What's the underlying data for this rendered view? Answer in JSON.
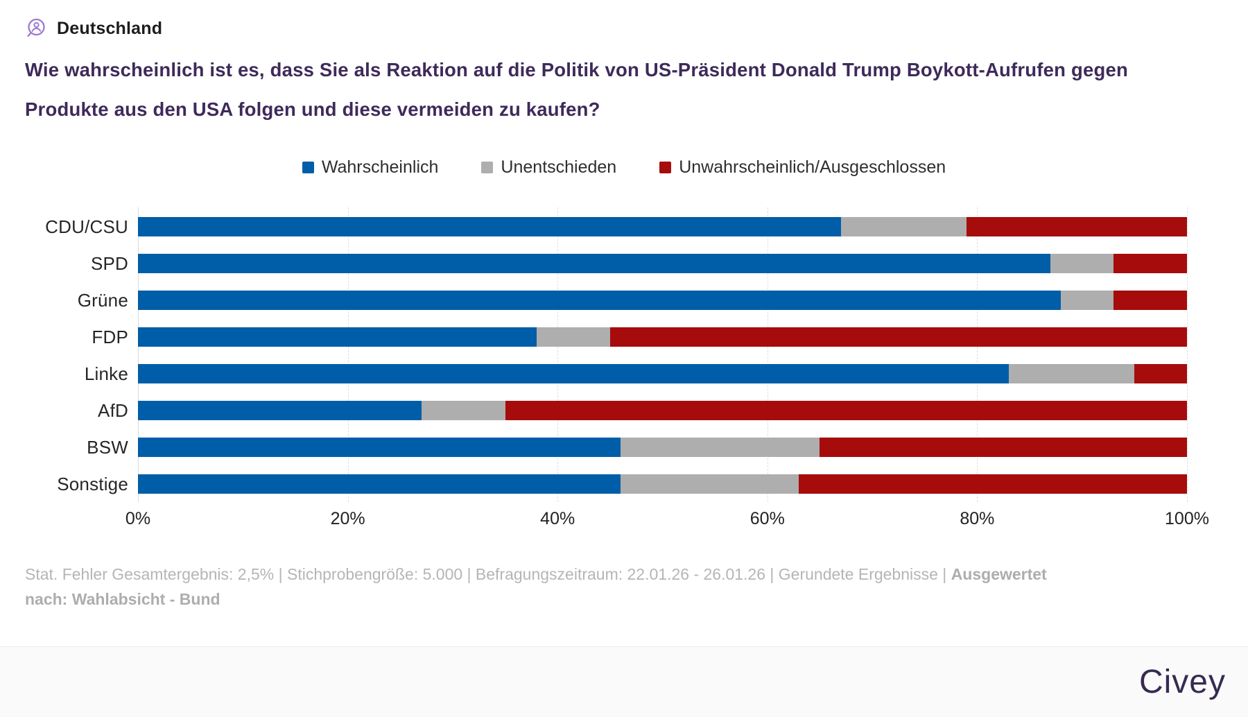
{
  "header": {
    "icon": "person-magnifier-icon",
    "region_label": "Deutschland"
  },
  "title": {
    "text": "Wie wahrscheinlich ist es, dass Sie als Reaktion auf die Politik von US-Präsident Donald Trump Boykott-Aufrufen gegen Produkte aus den USA folgen und diese vermeiden zu kaufen?"
  },
  "chart_data": {
    "type": "bar",
    "stacked": true,
    "orientation": "horizontal",
    "categories": [
      "CDU/CSU",
      "SPD",
      "Grüne",
      "FDP",
      "Linke",
      "AfD",
      "BSW",
      "Sonstige"
    ],
    "series": [
      {
        "name": "Wahrscheinlich",
        "color": "#005EA8",
        "values": [
          67,
          87,
          88,
          38,
          83,
          27,
          46,
          46
        ]
      },
      {
        "name": "Unentschieden",
        "color": "#AEAEAE",
        "values": [
          12,
          6,
          5,
          7,
          12,
          8,
          19,
          17
        ]
      },
      {
        "name": "Unwahrscheinlich/Ausgeschlossen",
        "color": "#A60C0C",
        "values": [
          21,
          7,
          7,
          55,
          5,
          65,
          35,
          37
        ]
      }
    ],
    "x_ticks": [
      "0%",
      "20%",
      "40%",
      "60%",
      "80%",
      "100%"
    ],
    "xlim": [
      0,
      100
    ],
    "grid": "vertical-dashed",
    "legend_position": "top-center"
  },
  "footer": {
    "stats_text": "Stat. Fehler Gesamtergebnis: 2,5% | Stichprobengröße: 5.000 | Befragungszeitraum: 22.01.26 - 26.01.26 | Gerundete Ergebnisse | ",
    "stats_bold": "Ausgewertet nach: Wahlabsicht - Bund"
  },
  "branding": {
    "logo_text": "Civey"
  },
  "colors": {
    "title_purple": "#3e2a5a",
    "icon_purple": "#9b79d2",
    "logo_purple": "#362a52",
    "footer_gray": "#b5b5b5"
  }
}
